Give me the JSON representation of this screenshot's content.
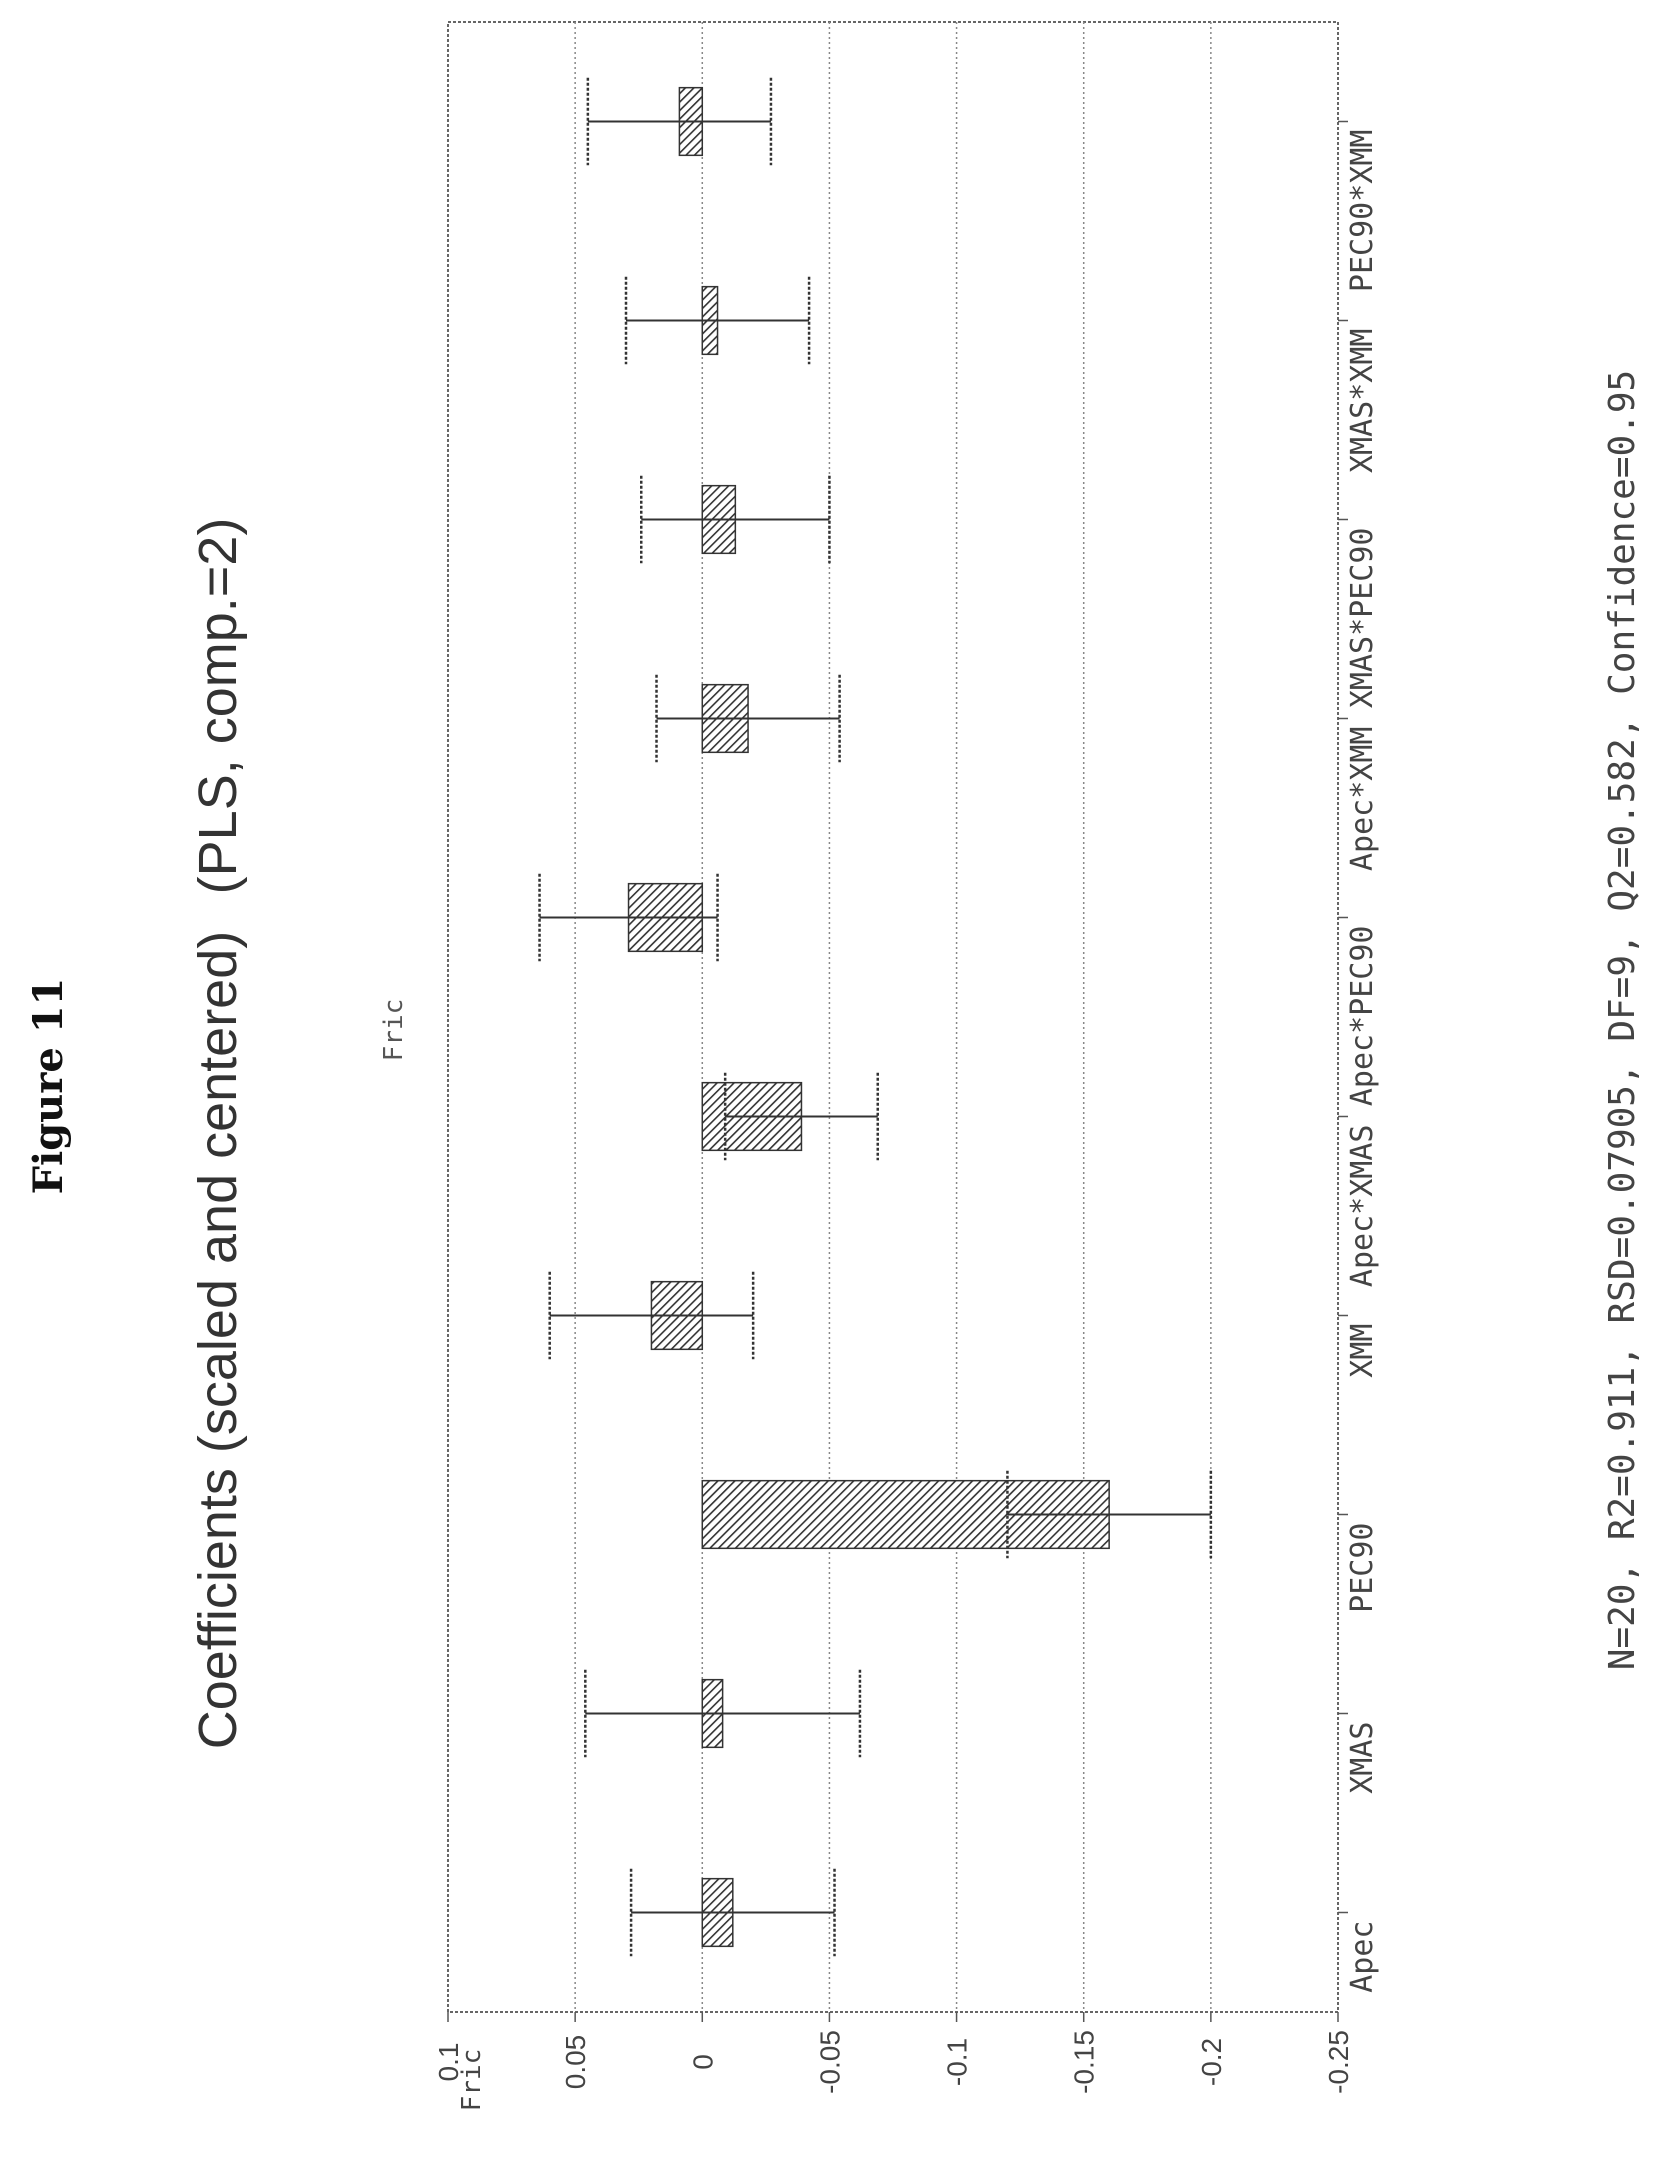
{
  "figure_label": "Figure 11",
  "chart_data": {
    "type": "bar",
    "title": "Coefficients (scaled and centered)",
    "subtitle": "(PLS, comp.=2)",
    "series_label": "Fric",
    "ylabel": "Fric",
    "ylim": [
      -0.25,
      0.1
    ],
    "yticks": [
      0.1,
      0.05,
      0,
      -0.05,
      -0.1,
      -0.15,
      -0.2,
      -0.25
    ],
    "ytick_labels": [
      "0.1",
      "0.05",
      "0",
      "-0.05",
      "-0.1",
      "-0.15",
      "-0.2",
      "-0.25"
    ],
    "grid": true,
    "categories": [
      "Apec",
      "XMAS",
      "PEC90",
      "XMM",
      "Apec*XMAS",
      "Apec*PEC90",
      "Apec*XMM",
      "XMAS*PEC90",
      "XMAS*XMM",
      "PEC90*XMM"
    ],
    "values": [
      -0.012,
      -0.008,
      -0.16,
      0.02,
      -0.039,
      0.029,
      -0.018,
      -0.013,
      -0.006,
      0.009
    ],
    "error_low": [
      -0.052,
      -0.062,
      -0.2,
      -0.02,
      -0.069,
      -0.006,
      -0.054,
      -0.05,
      -0.042,
      -0.027
    ],
    "error_high": [
      0.028,
      0.046,
      -0.12,
      0.06,
      -0.009,
      0.064,
      0.018,
      0.024,
      0.03,
      0.045
    ],
    "footer": "N=20,  R2=0.911,  RSD=0.07905,  DF=9,  Q2=0.582,  Confidence=0.95"
  }
}
